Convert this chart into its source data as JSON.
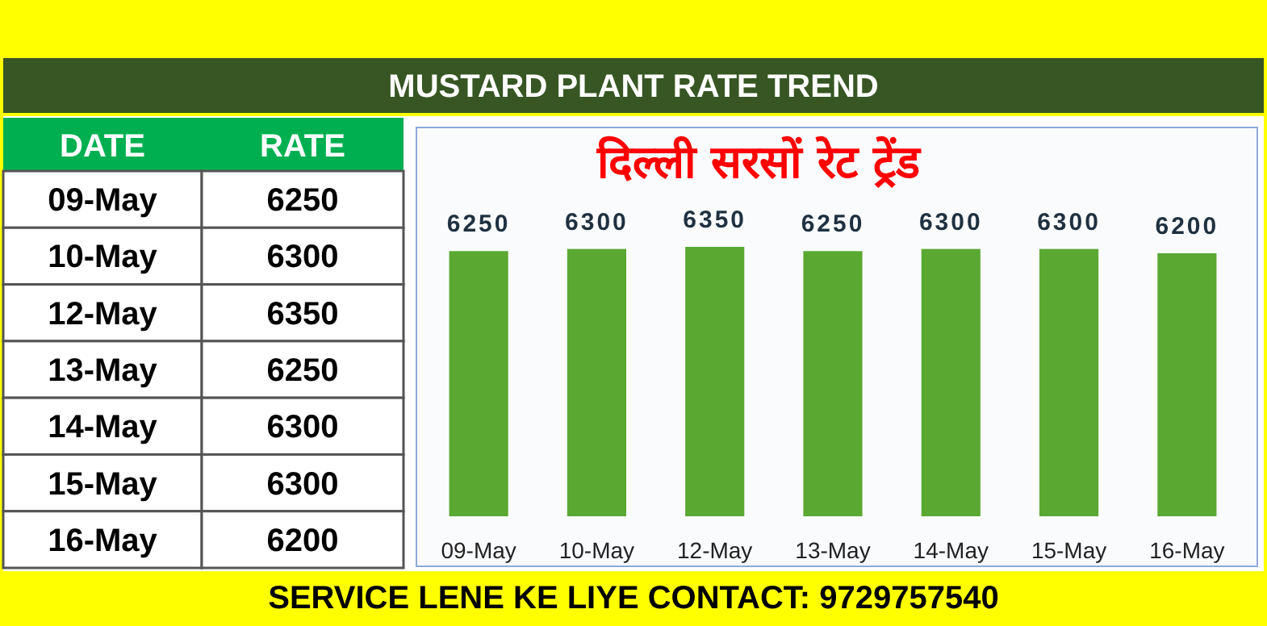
{
  "chart_data": [
    {
      "type": "other",
      "categories": [
        "09-May",
        "10-May",
        "12-May",
        "13-May",
        "14-May",
        "15-May",
        "16-May"
      ],
      "values": [
        6250,
        6300,
        6350,
        6250,
        6300,
        6300,
        6200
      ],
      "data_labels": true,
      "annotations": [
        "DATE",
        "RATE"
      ]
    },
    {
      "type": "bar",
      "title": "दिल्ली सरसों रेट ट्रेंड",
      "subtitle": "MUSTARD PLANT RATE TREND",
      "categories": [
        "09-May",
        "10-May",
        "12-May",
        "13-May",
        "14-May",
        "15-May",
        "16-May"
      ],
      "values": [
        6250,
        6300,
        6350,
        6250,
        6300,
        6300,
        6200
      ],
      "color": "#5aa832",
      "data_labels": true,
      "annotations": [
        "SERVICE LENE KE LIYE CONTACT: 9729757540"
      ]
    }
  ]
}
